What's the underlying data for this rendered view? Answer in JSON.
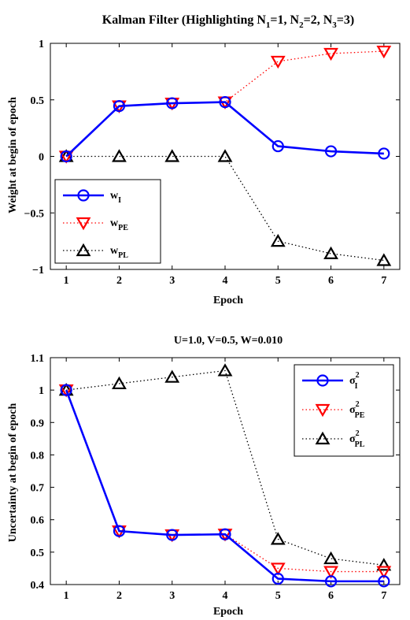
{
  "chart_data": [
    {
      "type": "line",
      "title": "Kalman Filter (Highlighting N",
      "title_parts": {
        "n1_sub": "1",
        "n1_val": "=1, N",
        "n2_sub": "2",
        "n2_val": "=2, N",
        "n3_sub": "3",
        "n3_val": "=3)"
      },
      "xlabel": "Epoch",
      "ylabel": "Weight at begin of epoch",
      "x": [
        1,
        2,
        3,
        4,
        5,
        6,
        7
      ],
      "xlim": [
        0.7,
        7.3
      ],
      "ylim": [
        -1,
        1
      ],
      "xticks": [
        "1",
        "2",
        "3",
        "4",
        "5",
        "6",
        "7"
      ],
      "yticks": [
        "−1",
        "−0.5",
        "0",
        "0.5",
        "1"
      ],
      "ytick_values": [
        -1,
        -0.5,
        0,
        0.5,
        1
      ],
      "legend_position": "lower-left",
      "series": [
        {
          "name": "w",
          "sub": "I",
          "values": [
            0,
            0.445,
            0.47,
            0.48,
            0.09,
            0.045,
            0.025
          ],
          "color": "#0000ff",
          "marker": "circle",
          "line": "solid"
        },
        {
          "name": "w",
          "sub": "PE",
          "values": [
            0,
            0.445,
            0.47,
            0.48,
            0.84,
            0.91,
            0.93
          ],
          "color": "#ff0000",
          "marker": "triangle-down",
          "line": "dotted"
        },
        {
          "name": "w",
          "sub": "PL",
          "values": [
            0,
            0,
            0,
            0,
            -0.75,
            -0.86,
            -0.92
          ],
          "color": "#000000",
          "marker": "triangle-up",
          "line": "dotted"
        }
      ]
    },
    {
      "type": "line",
      "title": "U=1.0, V=0.5, W=0.010",
      "xlabel": "Epoch",
      "ylabel": "Uncertainty at begin of epoch",
      "x": [
        1,
        2,
        3,
        4,
        5,
        6,
        7
      ],
      "xlim": [
        0.7,
        7.3
      ],
      "ylim": [
        0.4,
        1.1
      ],
      "xticks": [
        "1",
        "2",
        "3",
        "4",
        "5",
        "6",
        "7"
      ],
      "yticks": [
        "0.4",
        "0.5",
        "0.6",
        "0.7",
        "0.8",
        "0.9",
        "1",
        "1.1"
      ],
      "ytick_values": [
        0.4,
        0.5,
        0.6,
        0.7,
        0.8,
        0.9,
        1.0,
        1.1
      ],
      "legend_position": "upper-right",
      "series": [
        {
          "name": "σ",
          "sup": "2",
          "sub": "I",
          "values": [
            1.0,
            0.565,
            0.553,
            0.555,
            0.418,
            0.41,
            0.41
          ],
          "color": "#0000ff",
          "marker": "circle",
          "line": "solid"
        },
        {
          "name": "σ",
          "sup": "2",
          "sub": "PE",
          "values": [
            1.0,
            0.565,
            0.553,
            0.555,
            0.45,
            0.44,
            0.44
          ],
          "color": "#ff0000",
          "marker": "triangle-down",
          "line": "dotted"
        },
        {
          "name": "σ",
          "sup": "2",
          "sub": "PL",
          "values": [
            1.0,
            1.02,
            1.04,
            1.06,
            0.54,
            0.48,
            0.46
          ],
          "color": "#000000",
          "marker": "triangle-up",
          "line": "dotted"
        }
      ]
    }
  ]
}
